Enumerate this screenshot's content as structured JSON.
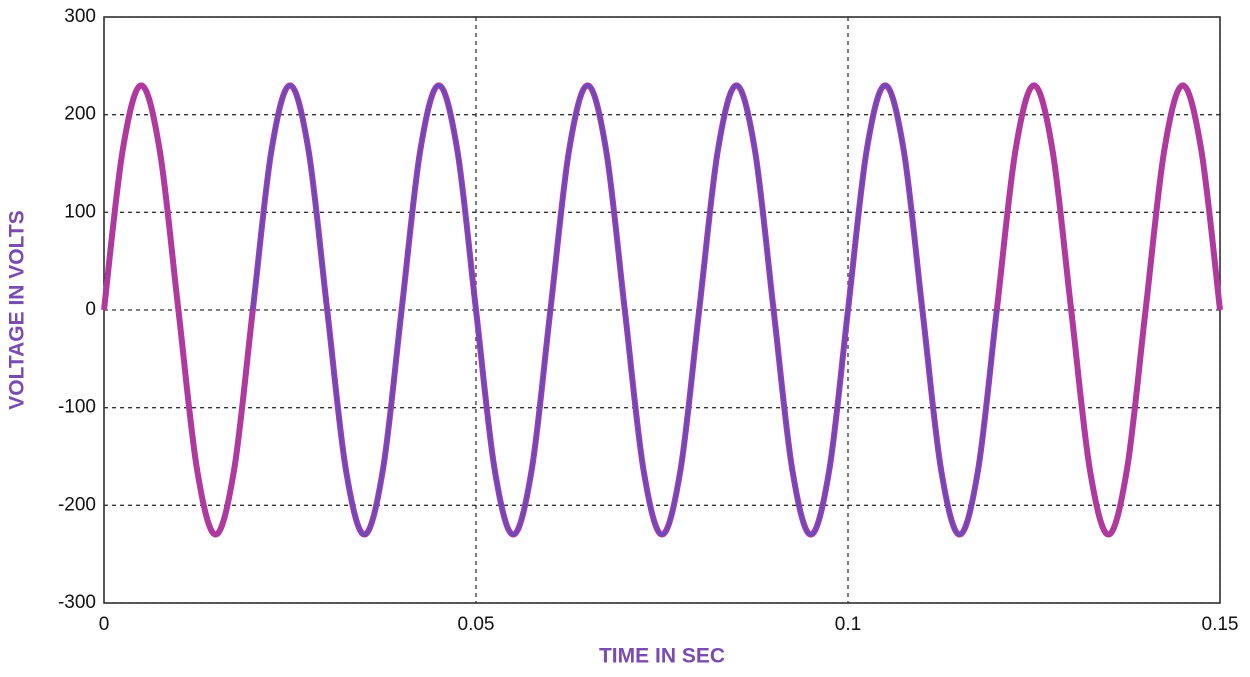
{
  "chart_data": {
    "type": "line",
    "xlabel": "TIME IN SEC",
    "ylabel": "VOLTAGE IN VOLTS",
    "x": [
      0,
      0.0025,
      0.005,
      0.0075,
      0.01,
      0.0125,
      0.015,
      0.0175,
      0.02,
      0.0225,
      0.025,
      0.0275,
      0.03,
      0.0325,
      0.035,
      0.0375,
      0.04,
      0.0425,
      0.045,
      0.0475,
      0.05,
      0.0525,
      0.055,
      0.0575,
      0.06,
      0.0625,
      0.065,
      0.0675,
      0.07,
      0.0725,
      0.075,
      0.0775,
      0.08,
      0.0825,
      0.085,
      0.0875,
      0.09,
      0.0925,
      0.095,
      0.0975,
      0.1,
      0.1025,
      0.105,
      0.1075,
      0.11,
      0.1125,
      0.115,
      0.1175,
      0.12,
      0.1225,
      0.125,
      0.1275,
      0.13,
      0.1325,
      0.135,
      0.1375,
      0.14,
      0.1425,
      0.145,
      0.1475,
      0.15
    ],
    "series": [
      {
        "color": "#b0399f",
        "values": [
          0,
          163,
          230,
          163,
          0,
          -163,
          -230,
          -163,
          0,
          163,
          230,
          163,
          0,
          -163,
          -230,
          -163,
          0,
          163,
          230,
          163,
          0,
          -163,
          -230,
          -163,
          0,
          163,
          230,
          163,
          0,
          -163,
          -230,
          -163,
          0,
          163,
          230,
          163,
          0,
          -163,
          -230,
          -163,
          0,
          163,
          230,
          163,
          0,
          -163,
          -230,
          -163,
          0,
          163,
          230,
          163,
          0,
          -163,
          -230,
          -163,
          0,
          163,
          230,
          163,
          0
        ]
      },
      {
        "color": "#6a4bbf",
        "values": [
          null,
          null,
          null,
          null,
          null,
          null,
          null,
          null,
          0,
          163,
          230,
          163,
          0,
          -163,
          -230,
          -163,
          0,
          163,
          230,
          163,
          0,
          -163,
          -230,
          -163,
          0,
          163,
          230,
          163,
          0,
          -163,
          -230,
          -163,
          0,
          163,
          230,
          163,
          0,
          -163,
          -230,
          -163,
          0,
          163,
          230,
          163,
          0,
          -163,
          -230,
          -163,
          0,
          null,
          null,
          null,
          null,
          null,
          null,
          null,
          null,
          null,
          null,
          null,
          null
        ]
      }
    ],
    "xlim": [
      0,
      0.15
    ],
    "xticks": [
      0,
      0.05,
      0.1,
      0.15
    ],
    "ylim": [
      -300,
      300
    ],
    "yticks": [
      -300,
      -200,
      -100,
      0,
      100,
      200,
      300
    ],
    "grid": true
  }
}
